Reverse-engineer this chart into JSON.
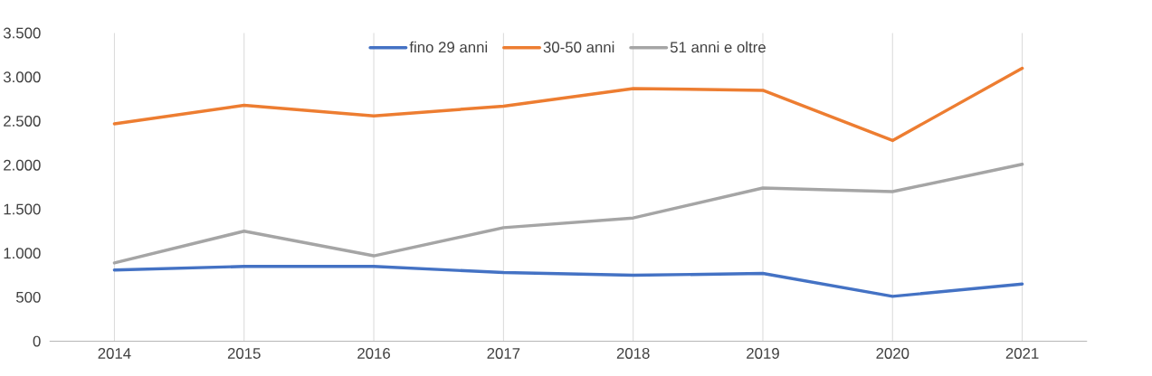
{
  "chart_data": {
    "type": "line",
    "categories": [
      "2014",
      "2015",
      "2016",
      "2017",
      "2018",
      "2019",
      "2020",
      "2021"
    ],
    "series": [
      {
        "name": "fino 29 anni",
        "color": "#4472c4",
        "values": [
          810,
          850,
          850,
          780,
          750,
          770,
          510,
          650
        ]
      },
      {
        "name": "30-50 anni",
        "color": "#ed7d31",
        "values": [
          2470,
          2680,
          2560,
          2670,
          2870,
          2850,
          2280,
          3100
        ]
      },
      {
        "name": "51 anni e oltre",
        "color": "#a5a5a5",
        "values": [
          890,
          1250,
          970,
          1290,
          1400,
          1740,
          1700,
          2010
        ]
      }
    ],
    "ylim": [
      0,
      3500
    ],
    "yticks": [
      0,
      500,
      {
        "value": 1000,
        "label": "1.000"
      },
      {
        "value": 1500,
        "label": "1.500"
      },
      {
        "value": 2000,
        "label": "2.000"
      },
      {
        "value": 2500,
        "label": "2.500"
      },
      {
        "value": 3000,
        "label": "3.000"
      },
      {
        "value": 3500,
        "label": "3.500"
      }
    ],
    "grid": "x",
    "legend": "top",
    "marker": "none",
    "line_style": "solid"
  }
}
